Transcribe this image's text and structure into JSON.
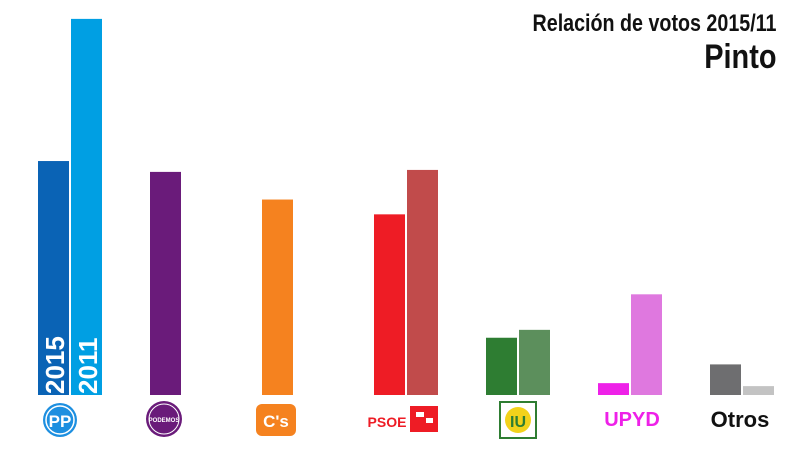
{
  "title": "Relación de votos 2015/11",
  "subtitle": "Pinto",
  "chart_data": {
    "type": "bar",
    "title": "Relación de votos 2015/11",
    "subtitle": "Pinto",
    "categories": [
      "PP",
      "PODEMOS",
      "C's",
      "PSOE",
      "IU",
      "UPYD",
      "Otros"
    ],
    "series": [
      {
        "name": "2015",
        "values": [
          237,
          226,
          198,
          183,
          58,
          12,
          31
        ]
      },
      {
        "name": "2011",
        "values": [
          381,
          null,
          null,
          228,
          66,
          102,
          9
        ]
      }
    ],
    "ylim": [
      0,
      390
    ],
    "grid": false,
    "legend": "none",
    "colors": {
      "2015": [
        "#0a63b5",
        "#6a1b7a",
        "#f5821f",
        "#ee1c25",
        "#2e7d32",
        "#ee21e8",
        "#6e6e70"
      ],
      "2011": [
        "#009fe3",
        null,
        null,
        "#c14b4b",
        "#5c8f5c",
        "#df78df",
        "#c3c3c3"
      ]
    }
  },
  "bar_labels": {
    "first": "2015",
    "second": "2011"
  },
  "logos": {
    "pp": "PP",
    "podemos": "PODEMOS",
    "cs": "C's",
    "psoe": "PSOE",
    "iu": "IU",
    "upyd": "UPYD",
    "otros": "Otros"
  }
}
